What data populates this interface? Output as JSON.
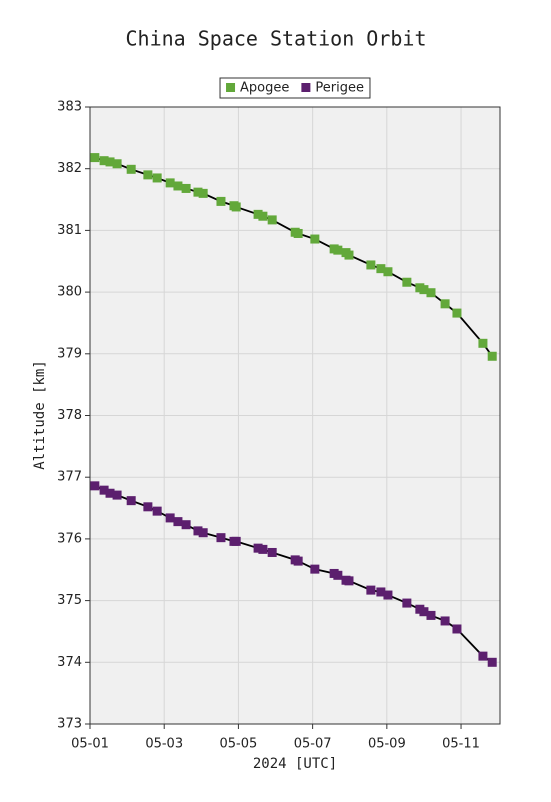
{
  "chart_data": {
    "type": "line",
    "title": "China Space Station Orbit",
    "xlabel": "2024 [UTC]",
    "ylabel": "Altitude [km]",
    "x": [
      1.13,
      1.38,
      1.54,
      1.73,
      2.11,
      2.56,
      2.81,
      3.16,
      3.37,
      3.59,
      3.91,
      4.05,
      4.53,
      4.88,
      4.94,
      5.53,
      5.66,
      5.91,
      6.53,
      6.61,
      7.06,
      7.58,
      7.68,
      7.9,
      7.98,
      8.57,
      8.84,
      9.03,
      9.54,
      9.89,
      10.0,
      10.19,
      10.57,
      10.89,
      11.59,
      11.84
    ],
    "series": [
      {
        "name": "Apogee",
        "color": "#62a83a",
        "values": [
          382.18,
          382.13,
          382.11,
          382.08,
          381.99,
          381.9,
          381.85,
          381.77,
          381.72,
          381.68,
          381.62,
          381.6,
          381.47,
          381.4,
          381.38,
          381.26,
          381.23,
          381.17,
          380.97,
          380.95,
          380.86,
          380.7,
          380.68,
          380.64,
          380.6,
          380.44,
          380.38,
          380.33,
          380.16,
          380.07,
          380.04,
          379.99,
          379.81,
          379.66,
          379.17,
          378.96
        ]
      },
      {
        "name": "Perigee",
        "color": "#5c1f6e",
        "values": [
          376.86,
          376.79,
          376.74,
          376.71,
          376.62,
          376.52,
          376.45,
          376.34,
          376.28,
          376.23,
          376.13,
          376.1,
          376.02,
          375.96,
          375.96,
          375.85,
          375.83,
          375.78,
          375.66,
          375.64,
          375.51,
          375.44,
          375.41,
          375.33,
          375.32,
          375.17,
          375.14,
          375.09,
          374.96,
          374.86,
          374.82,
          374.76,
          374.67,
          374.54,
          374.1,
          374.0
        ]
      }
    ],
    "xlim": [
      1,
      12.05
    ],
    "xticks": [
      {
        "value": 1,
        "label": "05-01"
      },
      {
        "value": 3,
        "label": "05-03"
      },
      {
        "value": 5,
        "label": "05-05"
      },
      {
        "value": 7,
        "label": "05-07"
      },
      {
        "value": 9,
        "label": "05-09"
      },
      {
        "value": 11,
        "label": "05-11"
      }
    ],
    "ylim": [
      373,
      383
    ],
    "yticks": [
      373,
      374,
      375,
      376,
      377,
      378,
      379,
      380,
      381,
      382,
      383
    ],
    "grid": true,
    "legend": "top"
  }
}
